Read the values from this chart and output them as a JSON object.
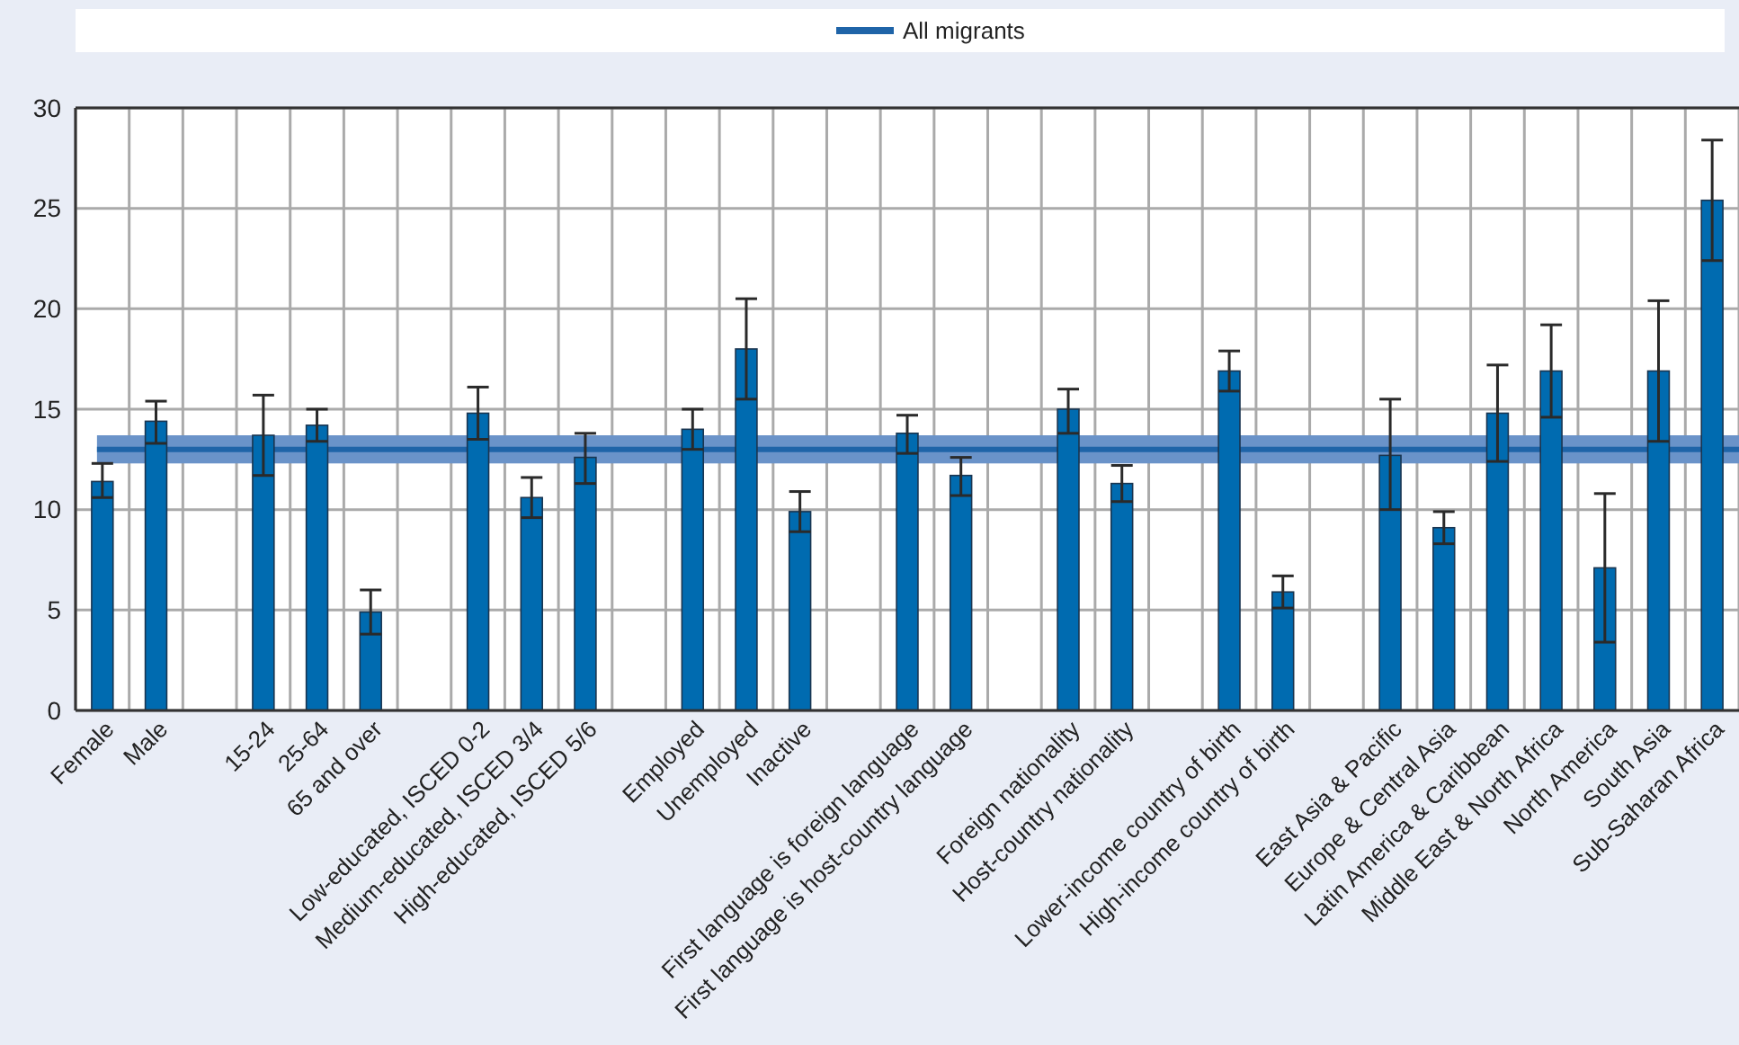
{
  "chart_data": {
    "type": "bar",
    "categories": [
      "Female",
      "Male",
      null,
      "15-24",
      "25-64",
      "65 and over",
      null,
      "Low-educated, ISCED 0-2",
      "Medium-educated, ISCED 3/4",
      "High-educated, ISCED 5/6",
      null,
      "Employed",
      "Unemployed",
      "Inactive",
      null,
      "First language is foreign language",
      "First language is host-country language",
      null,
      "Foreign nationality",
      "Host-country nationality",
      null,
      "Lower-income country of birth",
      "High-income country of birth",
      null,
      "East Asia & Pacific",
      "Europe & Central Asia",
      "Latin America & Caribbean",
      "Middle East & North Africa",
      "North America",
      "South Asia",
      "Sub-Saharan Africa"
    ],
    "values": [
      11.4,
      14.4,
      null,
      13.7,
      14.2,
      4.9,
      null,
      14.8,
      10.6,
      12.6,
      null,
      14.0,
      18.0,
      9.9,
      null,
      13.8,
      11.7,
      null,
      15.0,
      11.3,
      null,
      16.9,
      5.9,
      null,
      12.7,
      9.1,
      14.8,
      16.9,
      7.1,
      16.9,
      25.4
    ],
    "errors": [
      [
        10.6,
        12.3
      ],
      [
        13.3,
        15.4
      ],
      null,
      [
        11.7,
        15.7
      ],
      [
        13.4,
        15.0
      ],
      [
        3.8,
        6.0
      ],
      null,
      [
        13.5,
        16.1
      ],
      [
        9.6,
        11.6
      ],
      [
        11.3,
        13.8
      ],
      null,
      [
        13.0,
        15.0
      ],
      [
        15.5,
        20.5
      ],
      [
        8.9,
        10.9
      ],
      null,
      [
        12.8,
        14.7
      ],
      [
        10.7,
        12.6
      ],
      null,
      [
        13.8,
        16.0
      ],
      [
        10.4,
        12.2
      ],
      null,
      [
        15.9,
        17.9
      ],
      [
        5.1,
        6.7
      ],
      null,
      [
        10.0,
        15.5
      ],
      [
        8.3,
        9.9
      ],
      [
        12.4,
        17.2
      ],
      [
        14.6,
        19.2
      ],
      [
        3.4,
        10.8
      ],
      [
        13.4,
        20.4
      ],
      [
        22.4,
        28.4
      ]
    ],
    "color": "#006bb0",
    "ylim": [
      0,
      30
    ],
    "yticks": [
      0,
      5,
      10,
      15,
      20,
      25,
      30
    ],
    "grid": true,
    "legend": "top",
    "ref_lines": [
      {
        "axis": "y",
        "value": 13.0,
        "label": "All migrants",
        "color": "#1f64a8"
      }
    ],
    "bands": [
      {
        "axis": "y",
        "from": 12.3,
        "to": 13.7,
        "color": "#6a93c9"
      }
    ]
  }
}
